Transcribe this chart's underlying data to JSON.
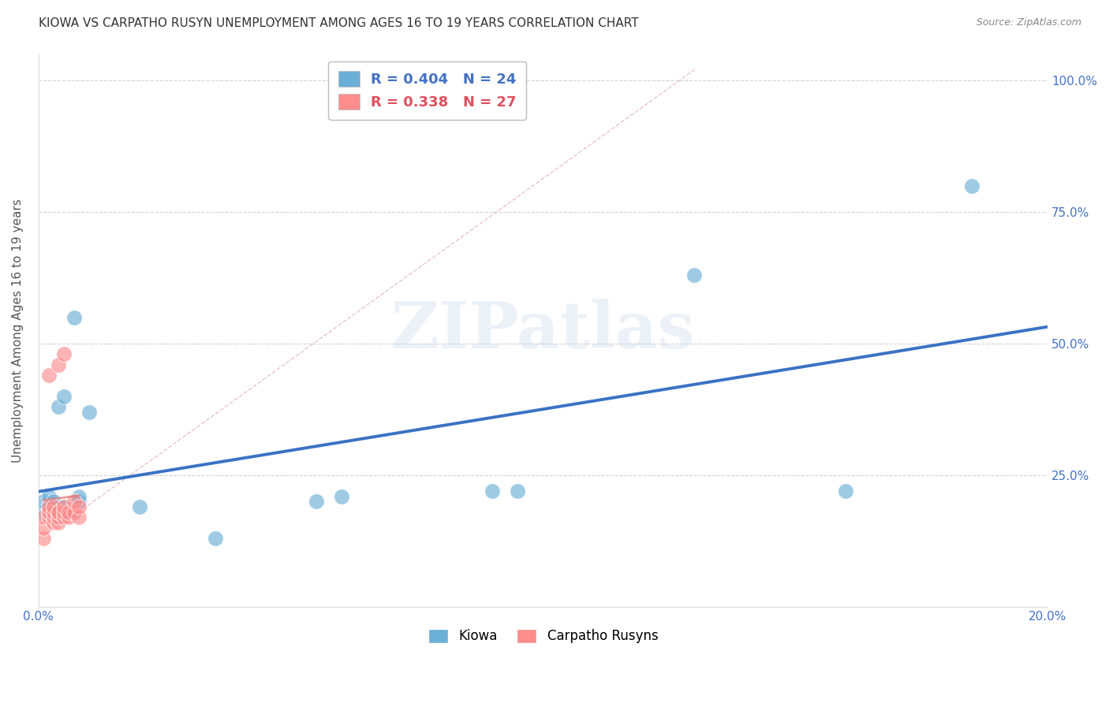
{
  "title": "KIOWA VS CARPATHO RUSYN UNEMPLOYMENT AMONG AGES 16 TO 19 YEARS CORRELATION CHART",
  "source": "Source: ZipAtlas.com",
  "ylabel": "Unemployment Among Ages 16 to 19 years",
  "x_min": 0.0,
  "x_max": 0.2,
  "y_min": 0.0,
  "y_max": 1.05,
  "x_ticks": [
    0.0,
    0.04,
    0.08,
    0.12,
    0.16,
    0.2
  ],
  "x_tick_labels": [
    "0.0%",
    "",
    "",
    "",
    "",
    "20.0%"
  ],
  "y_ticks": [
    0.25,
    0.5,
    0.75,
    1.0
  ],
  "y_tick_labels": [
    "25.0%",
    "50.0%",
    "75.0%",
    "100.0%"
  ],
  "kiowa_color": "#6baed6",
  "carpatho_color": "#fc8d8d",
  "kiowa_R": 0.404,
  "kiowa_N": 24,
  "carpatho_R": 0.338,
  "carpatho_N": 27,
  "kiowa_x": [
    0.001,
    0.001,
    0.002,
    0.002,
    0.003,
    0.003,
    0.004,
    0.004,
    0.005,
    0.005,
    0.006,
    0.007,
    0.008,
    0.008,
    0.01,
    0.02,
    0.035,
    0.055,
    0.06,
    0.09,
    0.095,
    0.13,
    0.16,
    0.185
  ],
  "kiowa_y": [
    0.18,
    0.2,
    0.19,
    0.21,
    0.19,
    0.2,
    0.38,
    0.19,
    0.19,
    0.4,
    0.18,
    0.55,
    0.2,
    0.21,
    0.37,
    0.19,
    0.13,
    0.2,
    0.21,
    0.22,
    0.22,
    0.63,
    0.22,
    0.8
  ],
  "carpatho_x": [
    0.001,
    0.001,
    0.001,
    0.002,
    0.002,
    0.002,
    0.002,
    0.002,
    0.003,
    0.003,
    0.003,
    0.003,
    0.004,
    0.004,
    0.004,
    0.004,
    0.004,
    0.005,
    0.005,
    0.005,
    0.005,
    0.006,
    0.006,
    0.007,
    0.007,
    0.008,
    0.008
  ],
  "carpatho_y": [
    0.13,
    0.15,
    0.17,
    0.17,
    0.18,
    0.18,
    0.19,
    0.44,
    0.16,
    0.17,
    0.18,
    0.19,
    0.16,
    0.17,
    0.18,
    0.18,
    0.46,
    0.17,
    0.18,
    0.19,
    0.48,
    0.17,
    0.18,
    0.18,
    0.2,
    0.17,
    0.19
  ],
  "watermark_text": "ZIPatlas",
  "background_color": "#ffffff",
  "grid_color": "#c8c8c8",
  "tick_color": "#4472c4",
  "axis_label_color": "#555555",
  "title_color": "#333333",
  "legend_box_color": "#4472c4",
  "legend_text_color_1": "#4472c4",
  "legend_text_color_2": "#e05060",
  "diag_line_color": "#d8a0a0",
  "blue_line_color": "#3a72c4",
  "pink_line_color": "#e07878"
}
